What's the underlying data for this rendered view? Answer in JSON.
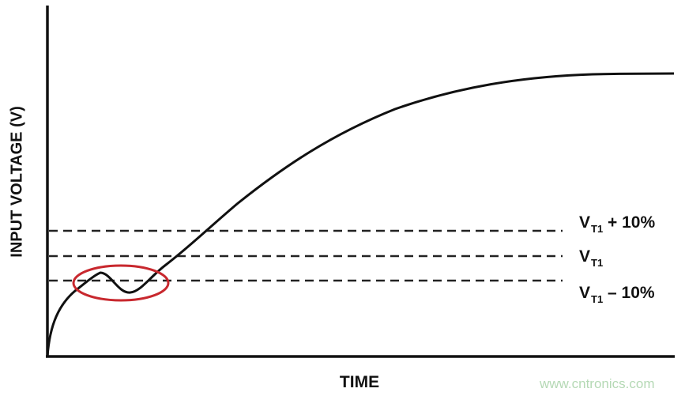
{
  "axes": {
    "y_label": "INPUT VOLTAGE (V)",
    "x_label": "TIME"
  },
  "thresholds": [
    {
      "base": "V",
      "sub": "T1",
      "suffix": " + 10%"
    },
    {
      "base": "V",
      "sub": "T1",
      "suffix": ""
    },
    {
      "base": "V",
      "sub": "T1",
      "suffix": " – 10%"
    }
  ],
  "colors": {
    "curve": "#111111",
    "highlight": "#c8282e",
    "watermark": "#b5d9b5"
  },
  "watermark": "www.cntronics.com"
}
